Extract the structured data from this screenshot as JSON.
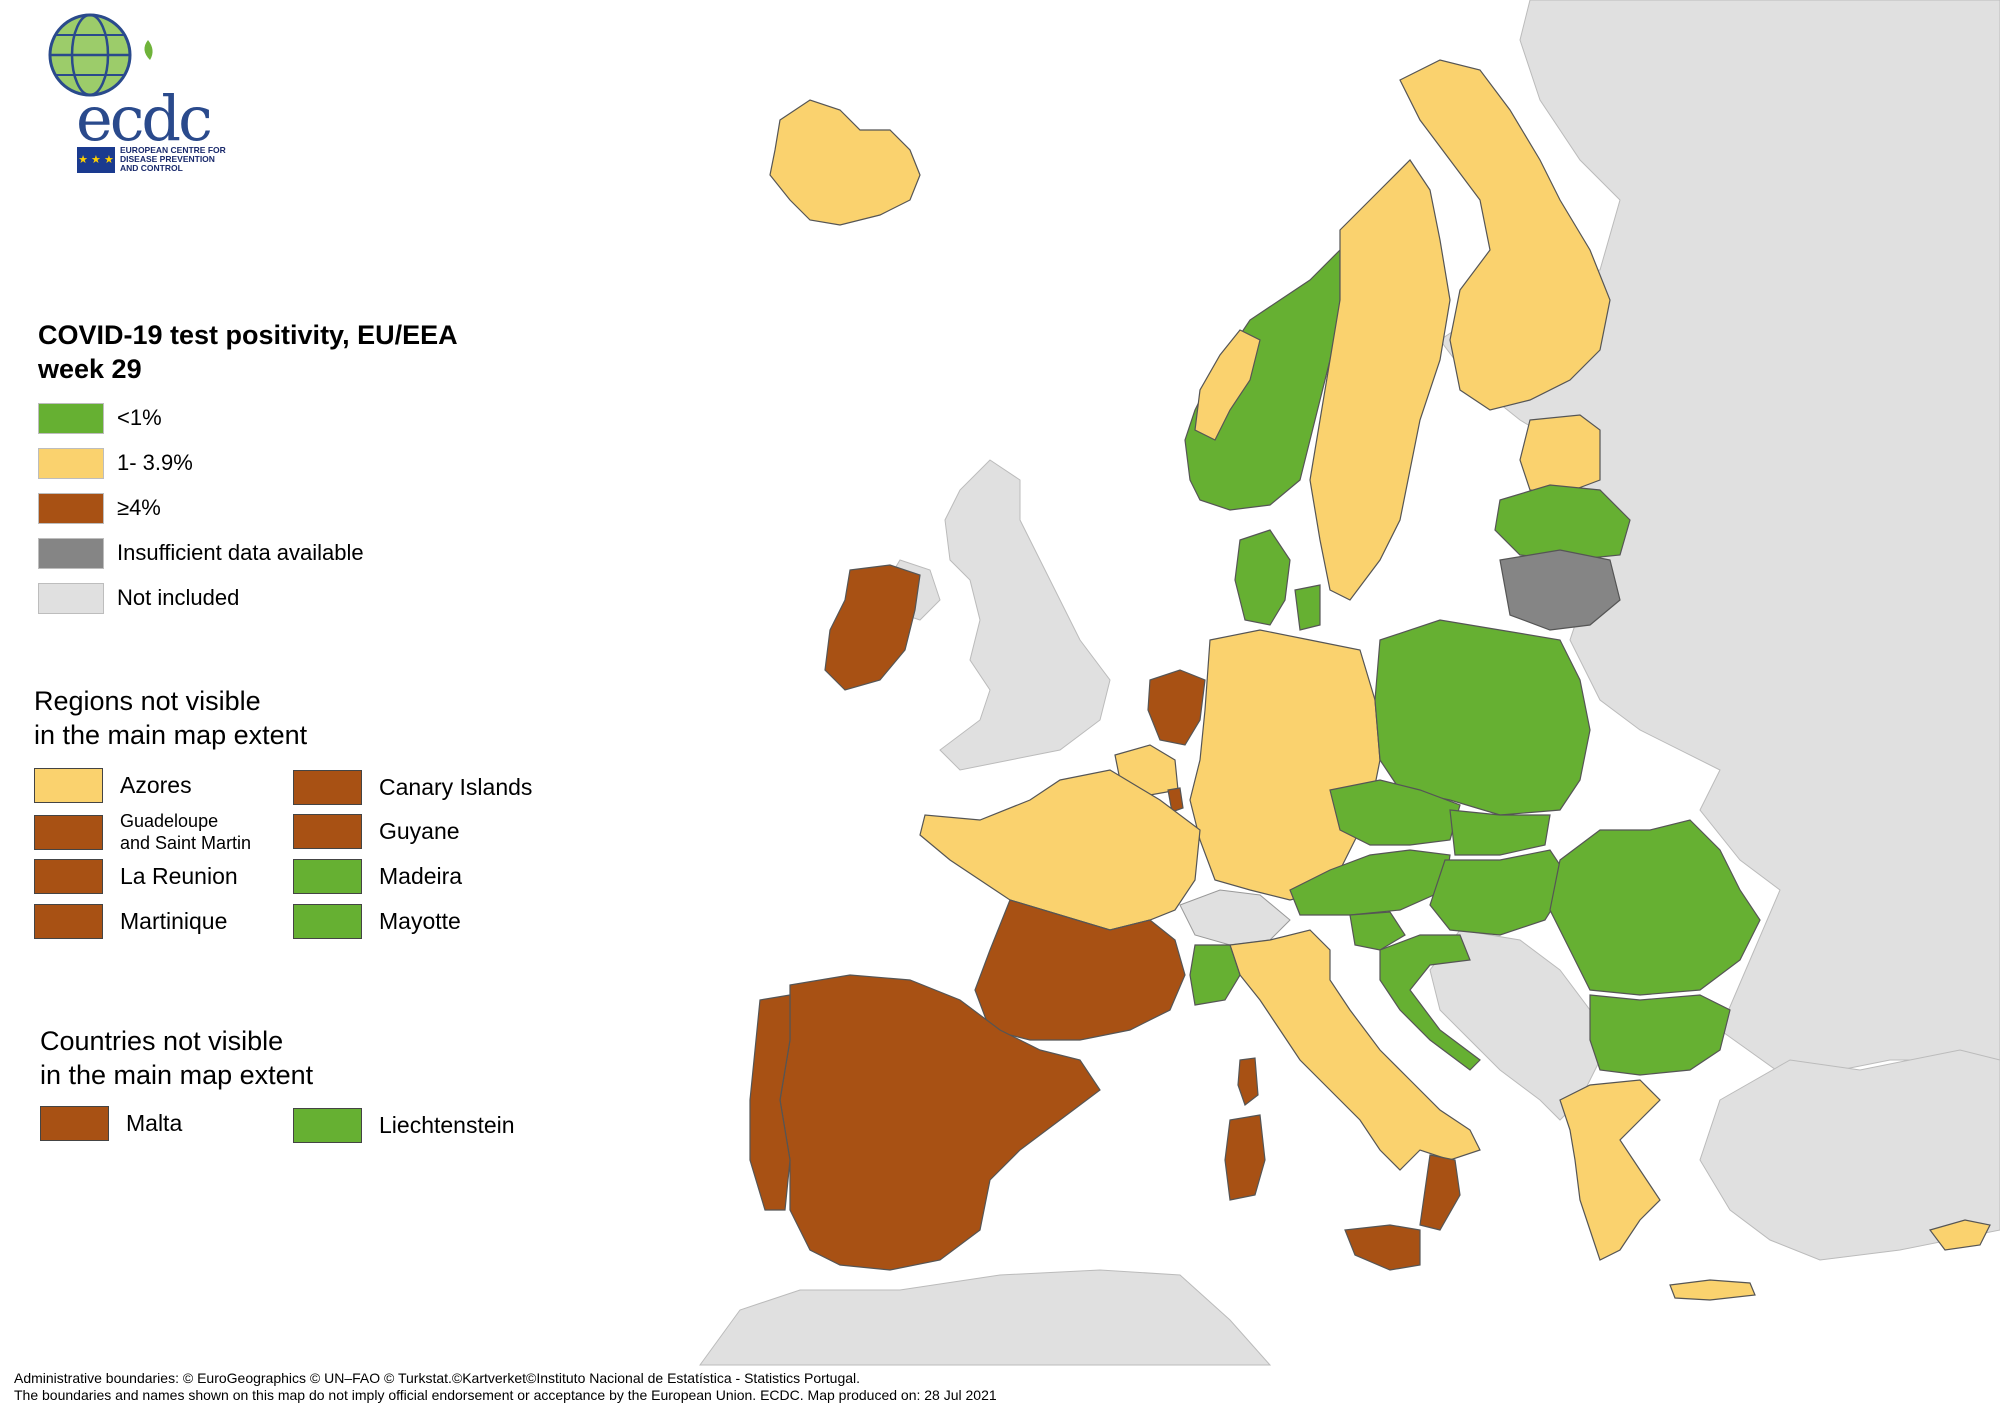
{
  "logo": {
    "text": "ecdc",
    "agency_lines": [
      "EUROPEAN CENTRE FOR",
      "DISEASE PREVENTION",
      "AND CONTROL"
    ]
  },
  "legend": {
    "title_line1": "COVID-19 test positivity, EU/EEA",
    "title_line2": "week 29",
    "items": [
      {
        "label": "<1%",
        "color": "#66b032"
      },
      {
        "label": "1- 3.9%",
        "color": "#fad26e"
      },
      {
        "label": "≥4%",
        "color": "#a85114"
      },
      {
        "label": "Insufficient data available",
        "color": "#858585"
      },
      {
        "label": "Not included",
        "color": "#e0e0e0"
      }
    ]
  },
  "regions_section": {
    "title_line1": "Regions not visible",
    "title_line2": "in the main map extent",
    "items": [
      {
        "label": "Azores",
        "color": "#fad26e"
      },
      {
        "label": "Canary Islands",
        "color": "#a85114"
      },
      {
        "label": "Guadeloupe and Saint Martin",
        "label_line1": "Guadeloupe",
        "label_line2": "and Saint Martin",
        "color": "#a85114"
      },
      {
        "label": "Guyane",
        "color": "#a85114"
      },
      {
        "label": "La Reunion",
        "color": "#a85114"
      },
      {
        "label": "Madeira",
        "color": "#66b032"
      },
      {
        "label": "Martinique",
        "color": "#a85114"
      },
      {
        "label": "Mayotte",
        "color": "#66b032"
      }
    ]
  },
  "countries_section": {
    "title_line1": "Countries not visible",
    "title_line2": "in the main map extent",
    "items": [
      {
        "label": "Malta",
        "color": "#a85114"
      },
      {
        "label": "Liechtenstein",
        "color": "#66b032"
      }
    ]
  },
  "footer": {
    "line1": "Administrative boundaries: © EuroGeographics © UN–FAO © Turkstat.©Kartverket©Instituto Nacional de Estatística - Statistics Portugal.",
    "line2": "The boundaries and names shown on this map do not imply official endorsement or acceptance by the European Union. ECDC. Map produced on: 28 Jul 2021"
  },
  "colors": {
    "low": "#66b032",
    "mid": "#fad26e",
    "high": "#a85114",
    "insufficient": "#858585",
    "not_included": "#e0e0e0",
    "sea": "#ffffff",
    "border": "#555555"
  },
  "map_areas": {
    "iceland": "mid",
    "ireland": "high",
    "united_kingdom": "not_included",
    "norway": "low",
    "norway_south_coast": "mid",
    "sweden": "mid",
    "finland": "mid",
    "estonia": "mid",
    "latvia": "low",
    "lithuania": "insufficient",
    "denmark": "low",
    "netherlands": "high",
    "belgium": "mid",
    "luxembourg": "high",
    "germany": "mid",
    "france": "mid",
    "france_south": "high",
    "spain": "high",
    "portugal": "high",
    "switzerland": "not_included",
    "italy": "mid",
    "italy_northwest": "low",
    "calabria": "high",
    "sicily": "high",
    "sardinia": "high",
    "corsica": "high",
    "austria": "low",
    "czechia": "low",
    "poland": "low",
    "slovakia": "low",
    "hungary": "low",
    "slovenia": "low",
    "croatia": "low",
    "romania": "low",
    "bulgaria": "low",
    "greece": "mid",
    "cyprus": "mid",
    "crete": "mid",
    "balkans": "not_included",
    "eastern_europe": "not_included",
    "turkey": "not_included",
    "north_africa": "not_included"
  }
}
